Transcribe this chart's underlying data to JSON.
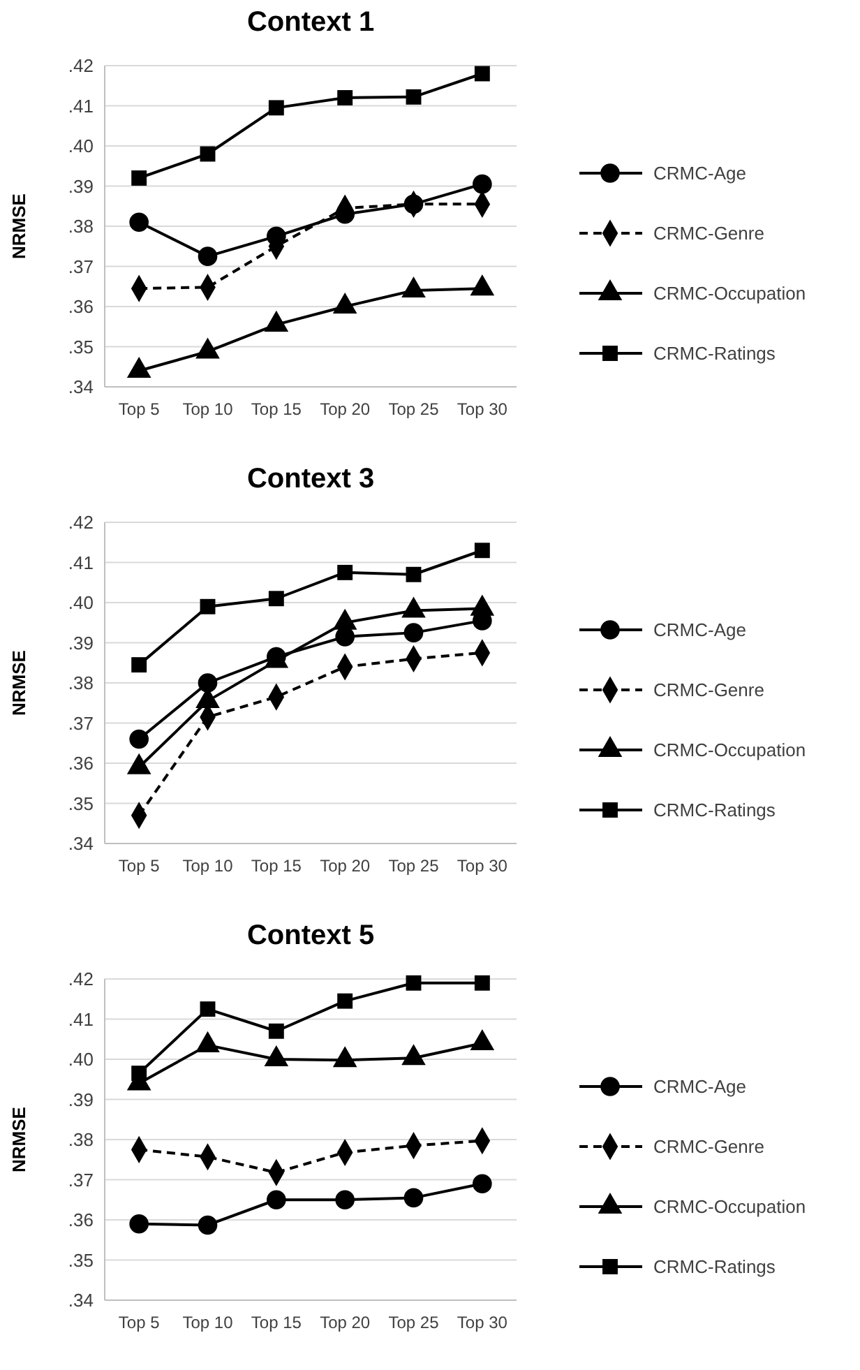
{
  "chart_data": [
    {
      "type": "line",
      "title": "Context 1",
      "ylabel": "NRMSE",
      "categories": [
        "Top 5",
        "Top 10",
        "Top 15",
        "Top 20",
        "Top 25",
        "Top 30"
      ],
      "ylim": [
        0.34,
        0.42
      ],
      "yticks": [
        {
          "value": 0.34,
          "label": ".34"
        },
        {
          "value": 0.35,
          "label": ".35"
        },
        {
          "value": 0.36,
          "label": ".36"
        },
        {
          "value": 0.37,
          "label": ".37"
        },
        {
          "value": 0.38,
          "label": ".38"
        },
        {
          "value": 0.39,
          "label": ".39"
        },
        {
          "value": 0.4,
          "label": ".40"
        },
        {
          "value": 0.41,
          "label": ".41"
        },
        {
          "value": 0.42,
          "label": ".42"
        }
      ],
      "grid": "y",
      "legend": "right",
      "series": [
        {
          "name": "CRMC-Age",
          "color": "#000000",
          "marker": "circle",
          "line_style": "solid",
          "values": [
            0.381,
            0.3725,
            0.3775,
            0.383,
            0.3855,
            0.3905
          ]
        },
        {
          "name": "CRMC-Genre",
          "color": "#000000",
          "marker": "diamond",
          "line_style": "dashed",
          "values": [
            0.3645,
            0.3648,
            0.375,
            0.3845,
            0.3855,
            0.3855
          ]
        },
        {
          "name": "CRMC-Occupation",
          "color": "#000000",
          "marker": "triangle",
          "line_style": "solid",
          "values": [
            0.344,
            0.3488,
            0.3555,
            0.36,
            0.364,
            0.3645
          ]
        },
        {
          "name": "CRMC-Ratings",
          "color": "#000000",
          "marker": "square",
          "line_style": "solid",
          "values": [
            0.392,
            0.398,
            0.4095,
            0.412,
            0.4122,
            0.418
          ]
        }
      ]
    },
    {
      "type": "line",
      "title": "Context 3",
      "ylabel": "NRMSE",
      "categories": [
        "Top 5",
        "Top 10",
        "Top 15",
        "Top 20",
        "Top 25",
        "Top 30"
      ],
      "ylim": [
        0.34,
        0.42
      ],
      "yticks": [
        {
          "value": 0.34,
          "label": ".34"
        },
        {
          "value": 0.35,
          "label": ".35"
        },
        {
          "value": 0.36,
          "label": ".36"
        },
        {
          "value": 0.37,
          "label": ".37"
        },
        {
          "value": 0.38,
          "label": ".38"
        },
        {
          "value": 0.39,
          "label": ".39"
        },
        {
          "value": 0.4,
          "label": ".40"
        },
        {
          "value": 0.41,
          "label": ".41"
        },
        {
          "value": 0.42,
          "label": ".42"
        }
      ],
      "grid": "y",
      "legend": "right",
      "series": [
        {
          "name": "CRMC-Age",
          "color": "#000000",
          "marker": "circle",
          "line_style": "solid",
          "values": [
            0.366,
            0.38,
            0.3865,
            0.3915,
            0.3925,
            0.3955
          ]
        },
        {
          "name": "CRMC-Genre",
          "color": "#000000",
          "marker": "diamond",
          "line_style": "dashed",
          "values": [
            0.347,
            0.3715,
            0.3765,
            0.384,
            0.386,
            0.3875
          ]
        },
        {
          "name": "CRMC-Occupation",
          "color": "#000000",
          "marker": "triangle",
          "line_style": "solid",
          "values": [
            0.359,
            0.3755,
            0.3855,
            0.395,
            0.398,
            0.3985
          ]
        },
        {
          "name": "CRMC-Ratings",
          "color": "#000000",
          "marker": "square",
          "line_style": "solid",
          "values": [
            0.3845,
            0.399,
            0.401,
            0.4075,
            0.407,
            0.413
          ]
        }
      ]
    },
    {
      "type": "line",
      "title": "Context 5",
      "ylabel": "NRMSE",
      "categories": [
        "Top 5",
        "Top 10",
        "Top 15",
        "Top 20",
        "Top 25",
        "Top 30"
      ],
      "ylim": [
        0.34,
        0.42
      ],
      "yticks": [
        {
          "value": 0.34,
          "label": ".34"
        },
        {
          "value": 0.35,
          "label": ".35"
        },
        {
          "value": 0.36,
          "label": ".36"
        },
        {
          "value": 0.37,
          "label": ".37"
        },
        {
          "value": 0.38,
          "label": ".38"
        },
        {
          "value": 0.39,
          "label": ".39"
        },
        {
          "value": 0.4,
          "label": ".40"
        },
        {
          "value": 0.41,
          "label": ".41"
        },
        {
          "value": 0.42,
          "label": ".42"
        }
      ],
      "grid": "y",
      "legend": "right",
      "series": [
        {
          "name": "CRMC-Age",
          "color": "#000000",
          "marker": "circle",
          "line_style": "solid",
          "values": [
            0.359,
            0.3587,
            0.365,
            0.365,
            0.3655,
            0.369
          ]
        },
        {
          "name": "CRMC-Genre",
          "color": "#000000",
          "marker": "diamond",
          "line_style": "dashed",
          "values": [
            0.3775,
            0.3757,
            0.3718,
            0.3768,
            0.3785,
            0.3797
          ]
        },
        {
          "name": "CRMC-Occupation",
          "color": "#000000",
          "marker": "triangle",
          "line_style": "solid",
          "values": [
            0.394,
            0.4035,
            0.4,
            0.3998,
            0.4003,
            0.404
          ]
        },
        {
          "name": "CRMC-Ratings",
          "color": "#000000",
          "marker": "square",
          "line_style": "solid",
          "values": [
            0.3965,
            0.4125,
            0.407,
            0.4145,
            0.419,
            0.419
          ]
        }
      ]
    }
  ]
}
